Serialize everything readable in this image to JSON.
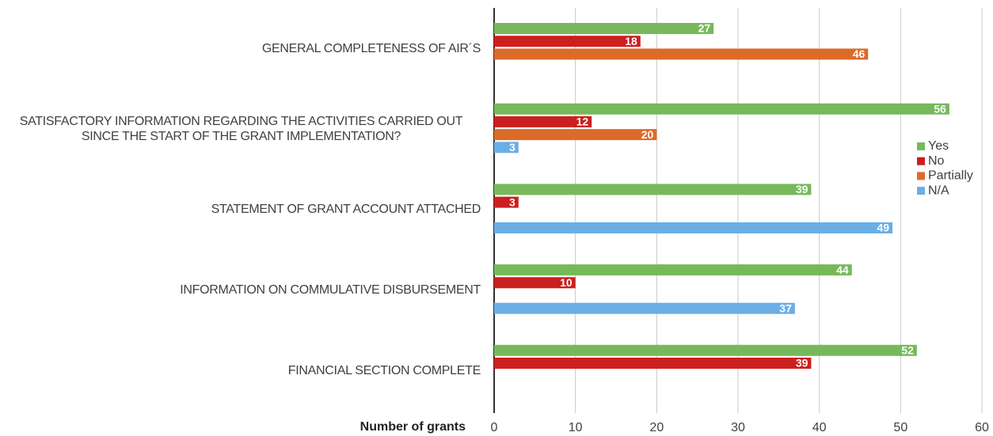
{
  "chart_data": {
    "type": "hbar",
    "x_label": "Number of grants",
    "categories": [
      "GENERAL COMPLETENESS OF AIR´S",
      "SATISFACTORY INFORMATION REGARDING THE ACTIVITIES CARRIED OUT SINCE THE START OF THE GRANT IMPLEMENTATION?",
      "STATEMENT OF GRANT ACCOUNT ATTACHED",
      "INFORMATION ON COMMULATIVE DISBURSEMENT",
      "FINANCIAL SECTION COMPLETE"
    ],
    "series": [
      {
        "name": "Yes",
        "color": "#77b95a",
        "values": [
          27,
          56,
          39,
          44,
          52
        ]
      },
      {
        "name": "No",
        "color": "#cc1f1f",
        "values": [
          18,
          12,
          3,
          10,
          39
        ]
      },
      {
        "name": "Partially",
        "color": "#dc6b2a",
        "values": [
          46,
          20,
          null,
          null,
          null
        ]
      },
      {
        "name": "N/A",
        "color": "#6aaee6",
        "values": [
          null,
          3,
          49,
          37,
          null
        ]
      }
    ],
    "xlim": [
      0,
      60
    ],
    "xticks": [
      0,
      10,
      20,
      30,
      40,
      50,
      60
    ],
    "grid": true,
    "legend": "right"
  }
}
